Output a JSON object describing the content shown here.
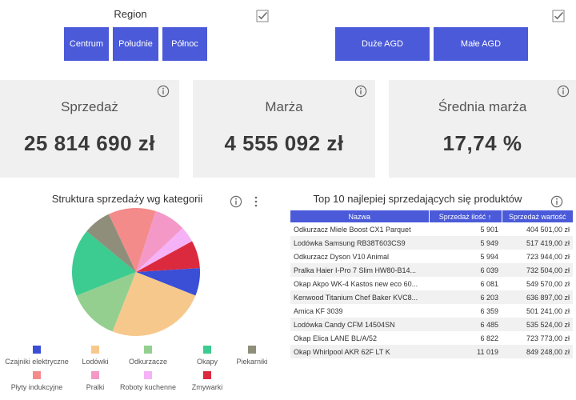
{
  "region_slicer": {
    "title": "Region",
    "buttons": [
      "Centrum",
      "Południe",
      "Północ"
    ]
  },
  "category_slicer": {
    "buttons": [
      "Duże AGD",
      "Małe AGD"
    ]
  },
  "kpis": [
    {
      "label": "Sprzedaż",
      "value": "25 814 690 zł"
    },
    {
      "label": "Marża",
      "value": "4 555 092 zł"
    },
    {
      "label": "Średnia marża",
      "value": "17,74 %"
    }
  ],
  "chart_data": {
    "type": "pie",
    "title": "Struktura sprzedaży wg kategorii",
    "categories": [
      "Czajniki elektryczne",
      "Lodówki",
      "Odkurzacze",
      "Okapy",
      "Piekarniki",
      "Płyty indukcyjne",
      "Pralki",
      "Roboty kuchenne",
      "Zmywarki"
    ],
    "values": [
      7,
      25,
      13,
      17,
      7,
      12,
      8,
      4,
      7
    ],
    "colors": [
      "#3b4ed6",
      "#f7c88c",
      "#94cf8f",
      "#3ccb90",
      "#8e8e7a",
      "#f48b8b",
      "#f498c8",
      "#f6b2f6",
      "#db2a3e"
    ],
    "legend_position": "bottom"
  },
  "table": {
    "title": "Top 10 najlepiej sprzedających się produktów",
    "columns": [
      "Nazwa",
      "Sprzedaż ilość",
      "Sprzedaż wartość"
    ],
    "sort_icon": "↑",
    "rows": [
      [
        "Odkurzacz Miele Boost CX1 Parquet",
        "5 901",
        "404 501,00 zł"
      ],
      [
        "Lodówka Samsung RB38T603CS9",
        "5 949",
        "517 419,00 zł"
      ],
      [
        "Odkurzacz Dyson V10 Animal",
        "5 994",
        "723 944,00 zł"
      ],
      [
        "Pralka Haier I-Pro 7 Slim HW80-B14...",
        "6 039",
        "732 504,00 zł"
      ],
      [
        "Okap Akpo WK-4 Kastos new eco 60...",
        "6 081",
        "549 570,00 zł"
      ],
      [
        "Kenwood Titanium Chef Baker KVC8...",
        "6 203",
        "636 897,00 zł"
      ],
      [
        "Amica KF 3039",
        "6 359",
        "501 241,00 zł"
      ],
      [
        "Lodówka Candy CFM 14504SN",
        "6 485",
        "535 524,00 zł"
      ],
      [
        "Okap Elica LANE BL/A/52",
        "6 822",
        "723 773,00 zł"
      ],
      [
        "Okap Whirlpool AKR 62F LT K",
        "11 019",
        "849 248,00 zł"
      ]
    ]
  },
  "icons": {
    "checkbox": "checkbox-icon",
    "info": "info-icon",
    "more": "more-options-icon"
  }
}
